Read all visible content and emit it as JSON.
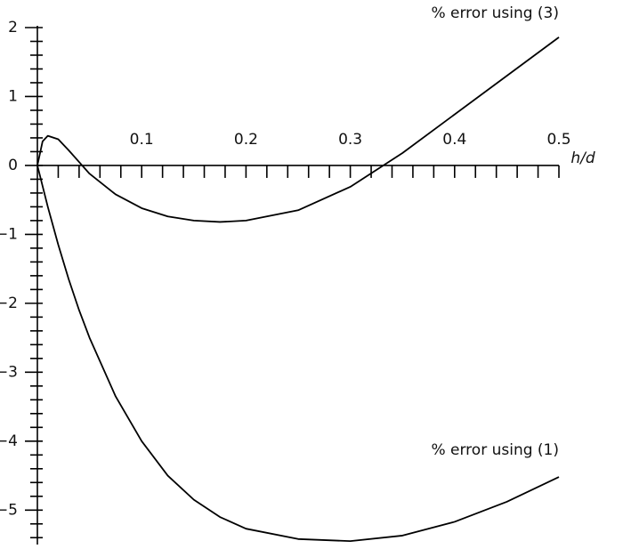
{
  "chart_data": {
    "type": "line",
    "x_label": "h/d",
    "x": [
      0,
      0.005,
      0.01,
      0.02,
      0.03,
      0.04,
      0.05,
      0.075,
      0.1,
      0.125,
      0.15,
      0.175,
      0.2,
      0.25,
      0.3,
      0.35,
      0.4,
      0.45,
      0.5
    ],
    "series": [
      {
        "name": "% error using (3)",
        "color": "#000000",
        "values": [
          0,
          0.35,
          0.43,
          0.38,
          0.22,
          0.05,
          -0.12,
          -0.42,
          -0.62,
          -0.74,
          -0.8,
          -0.82,
          -0.8,
          -0.65,
          -0.31,
          0.18,
          0.74,
          1.3,
          1.86
        ]
      },
      {
        "name": "% error using (1)",
        "color": "#000000",
        "values": [
          0,
          -0.3,
          -0.6,
          -1.15,
          -1.65,
          -2.1,
          -2.5,
          -3.35,
          -4.0,
          -4.5,
          -4.85,
          -5.1,
          -5.27,
          -5.42,
          -5.45,
          -5.37,
          -5.17,
          -4.88,
          -4.52
        ]
      }
    ],
    "xlim": [
      0,
      0.5
    ],
    "ylim": [
      -5.5,
      2
    ],
    "xticks": [
      0.1,
      0.2,
      0.3,
      0.4,
      0.5
    ],
    "xminorticks": [
      0.02,
      0.04,
      0.06,
      0.08,
      0.12,
      0.14,
      0.16,
      0.18,
      0.22,
      0.24,
      0.26,
      0.28,
      0.32,
      0.34,
      0.36,
      0.38,
      0.42,
      0.44,
      0.46,
      0.48
    ],
    "yticks": [
      2,
      1,
      0,
      {
        "value": -1,
        "label": "−1"
      },
      {
        "value": -2,
        "label": "−2"
      },
      {
        "value": -3,
        "label": "−3"
      },
      {
        "value": -4,
        "label": "−4"
      },
      {
        "value": -5,
        "label": "−5"
      }
    ],
    "yminorticks": [
      1.8,
      1.6,
      1.4,
      1.2,
      0.8,
      0.6,
      0.4,
      0.2,
      -0.2,
      -0.4,
      -0.6,
      -0.8,
      -1.2,
      -1.4,
      -1.6,
      -1.8,
      -2.2,
      -2.4,
      -2.6,
      -2.8,
      -3.2,
      -3.4,
      -3.6,
      -3.8,
      -4.2,
      -4.4,
      -4.6,
      -4.8,
      -5.2,
      -5.4
    ]
  }
}
